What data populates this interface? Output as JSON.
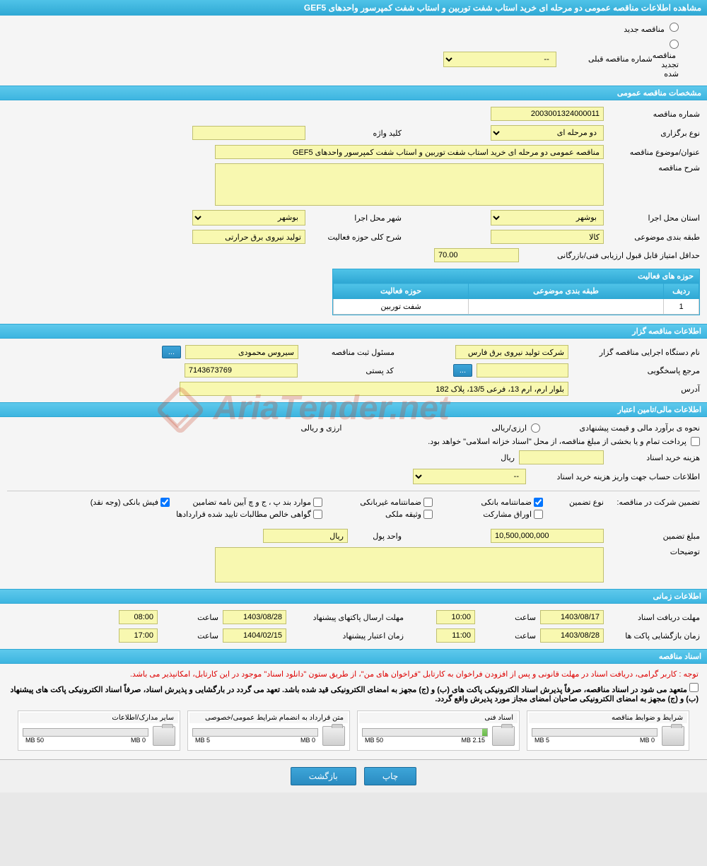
{
  "page_title": "مشاهده اطلاعات مناقصه عمومی دو مرحله ای خرید استاب شفت توربین و استاب شفت کمپرسور واحدهای GEF5",
  "radios": {
    "new_tender": "مناقصه جدید",
    "renewed_tender": "مناقصه تجدید شده"
  },
  "prev_tender": {
    "label": "شماره مناقصه قبلی",
    "value": "--"
  },
  "sections": {
    "general": "مشخصات مناقصه عمومی",
    "organizer": "اطلاعات مناقصه گزار",
    "financial": "اطلاعات مالی/تامین اعتبار",
    "timing": "اطلاعات زمانی",
    "documents": "اسناد مناقصه"
  },
  "general": {
    "tender_no_label": "شماره مناقصه",
    "tender_no": "2003001324000011",
    "type_label": "نوع برگزاری",
    "type_value": "دو مرحله ای",
    "keyword_label": "کلید واژه",
    "keyword": "",
    "subject_label": "عنوان/موضوع مناقصه",
    "subject": "مناقصه عمومی دو مرحله ای خرید استاب شفت توربین و استاب شفت کمپرسور واحدهای GEF5",
    "desc_label": "شرح مناقصه",
    "province_label": "استان محل اجرا",
    "province": "بوشهر",
    "city_label": "شهر محل اجرا",
    "city": "بوشهر",
    "category_label": "طبقه بندی موضوعی",
    "category": "کالا",
    "scope_label": "شرح کلی حوزه فعالیت",
    "scope": "تولید نیروی برق حرارتی",
    "min_score_label": "حداقل امتیاز قابل قبول ارزیابی فنی/بازرگانی",
    "min_score": "70.00",
    "activity_table_title": "حوزه های فعالیت",
    "table_headers": {
      "row": "ردیف",
      "category": "طبقه بندی موضوعی",
      "activity": "حوزه فعالیت"
    },
    "table_rows": [
      {
        "row": "1",
        "category": "",
        "activity": "شفت توربین"
      }
    ]
  },
  "organizer": {
    "agency_label": "نام دستگاه اجرایی مناقصه گزار",
    "agency": "شرکت تولید نیروی برق فارس",
    "registrar_label": "مسئول ثبت مناقصه",
    "registrar": "سیروس محمودی",
    "contact_label": "مرجع پاسخگویی",
    "postal_label": "کد پستی",
    "postal": "7143673769",
    "address_label": "آدرس",
    "address": "بلوار ارم، ارم 13، فرعی 13/5، پلاک 182"
  },
  "financial": {
    "estimate_label": "نحوه ی برآورد مالی و قیمت پیشنهادی",
    "currency_fx": "ارزی/ریالی",
    "currency_both": "ارزی و ریالی",
    "treasury_note": "پرداخت تمام و یا بخشی از مبلغ مناقصه، از محل \"اسناد خزانه اسلامی\" خواهد بود.",
    "purchase_cost_label": "هزینه خرید اسناد",
    "currency_unit": "ریال",
    "account_label": "اطلاعات حساب جهت واریز هزینه خرید اسناد",
    "account_value": "--",
    "guarantee_label": "تضمین شرکت در مناقصه:",
    "guarantee_type_label": "نوع تضمین",
    "checkboxes": {
      "bank_guarantee": "ضمانتنامه بانکی",
      "nonbank_guarantee": "ضمانتنامه غیربانکی",
      "clause_items": "موارد بند پ ، ج و چ آیین نامه تضامین",
      "bank_receipt": "فیش بانکی (وجه نقد)",
      "bonds": "اوراق مشارکت",
      "property": "وثیقه ملکی",
      "claims_cert": "گواهی خالص مطالبات تایید شده قراردادها"
    },
    "checked": {
      "bank_guarantee": true,
      "bank_receipt": true
    },
    "guarantee_amount_label": "مبلغ تضمین",
    "guarantee_amount": "10,500,000,000",
    "unit_label": "واحد پول",
    "unit_value": "ریال",
    "notes_label": "توضیحات"
  },
  "timing": {
    "receive_deadline_label": "مهلت دریافت اسناد",
    "receive_date": "1403/08/17",
    "receive_time_label": "ساعت",
    "receive_time": "10:00",
    "submit_deadline_label": "مهلت ارسال پاکتهای پیشنهاد",
    "submit_date": "1403/08/28",
    "submit_time": "08:00",
    "opening_label": "زمان بازگشایی پاکت ها",
    "opening_date": "1403/08/28",
    "opening_time": "11:00",
    "validity_label": "زمان اعتبار پیشنهاد",
    "validity_date": "1404/02/15",
    "validity_time": "17:00"
  },
  "documents": {
    "notice1": "توجه : کاربر گرامی، دریافت اسناد در مهلت قانونی و پس از افزودن فراخوان به کارتابل \"فراخوان های من\"، از طریق ستون \"دانلود اسناد\" موجود در این کارتابل، امکانپذیر می باشد.",
    "notice2": "متعهد می شود در اسناد مناقصه، صرفاً پذیرش اسناد الکترونیکی پاکت های (ب) و (ج) مجهز به امضای الکترونیکی قید شده باشد. تعهد می گردد در بارگشایی و پذیرش اسناد، صرفاً اسناد الکترونیکی پاکت های پیشنهاد (ب) و (ج) مجهز به امضای الکترونیکی صاحبان امضای مجاز مورد پذیرش واقع گردد.",
    "files": [
      {
        "title": "شرایط و ضوابط مناقصه",
        "used": "0 MB",
        "total": "5 MB",
        "pct": 0
      },
      {
        "title": "اسناد فنی",
        "used": "2.15 MB",
        "total": "50 MB",
        "pct": 4
      },
      {
        "title": "متن قرارداد به انضمام شرایط عمومی/خصوصی",
        "used": "0 MB",
        "total": "5 MB",
        "pct": 0
      },
      {
        "title": "سایر مدارک/اطلاعات",
        "used": "0 MB",
        "total": "50 MB",
        "pct": 0
      }
    ]
  },
  "footer": {
    "print": "چاپ",
    "back": "بازگشت"
  },
  "dots": "..."
}
